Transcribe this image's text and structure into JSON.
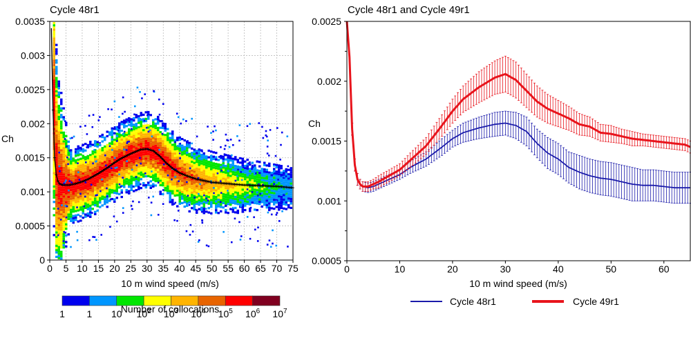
{
  "chart_data": [
    {
      "type": "heatmap",
      "title": "Cycle 48r1",
      "xlabel": "10 m wind speed (m/s)",
      "ylabel": "Ch",
      "xlim": [
        0,
        75
      ],
      "ylim": [
        0,
        0.0035
      ],
      "xticks": [
        "0",
        "5",
        "10",
        "15",
        "20",
        "25",
        "30",
        "35",
        "40",
        "45",
        "50",
        "55",
        "60",
        "65",
        "70",
        "75"
      ],
      "yticks": [
        "0",
        "0.0005",
        "0.001",
        "0.0015",
        "0.002",
        "0.0025",
        "0.003",
        "0.0035"
      ],
      "grid": true,
      "mean_curve": {
        "x": [
          0.5,
          1,
          1.5,
          2,
          2.5,
          3,
          4,
          5,
          6,
          8,
          10,
          12,
          15,
          18,
          20,
          22,
          25,
          28,
          30,
          32,
          34,
          36,
          38,
          40,
          42,
          45,
          48,
          50,
          55,
          60,
          65,
          70,
          75
        ],
        "y": [
          0.0034,
          0.0022,
          0.0015,
          0.00125,
          0.00116,
          0.00112,
          0.0011,
          0.0011,
          0.0011,
          0.00112,
          0.00115,
          0.00119,
          0.00127,
          0.00136,
          0.00143,
          0.00149,
          0.00156,
          0.00162,
          0.00163,
          0.0016,
          0.00152,
          0.00142,
          0.00134,
          0.00128,
          0.00124,
          0.00119,
          0.00116,
          0.00114,
          0.00112,
          0.0011,
          0.00109,
          0.00108,
          0.00106
        ]
      },
      "colorbar": {
        "label": "Number of collocations",
        "tick_labels": [
          {
            "base": "1",
            "exp": ""
          },
          {
            "base": "1",
            "exp": ""
          },
          {
            "base": "10",
            "exp": ""
          },
          {
            "base": "10",
            "exp": "2"
          },
          {
            "base": "10",
            "exp": "3"
          },
          {
            "base": "10",
            "exp": "4"
          },
          {
            "base": "10",
            "exp": "5"
          },
          {
            "base": "10",
            "exp": "6"
          },
          {
            "base": "10",
            "exp": "7"
          }
        ],
        "colors": [
          "#0000ee",
          "#0096ff",
          "#00e600",
          "#ffff00",
          "#ffb400",
          "#e86400",
          "#ff0000",
          "#800020"
        ]
      }
    },
    {
      "type": "line",
      "title": "Cycle 48r1 and Cycle 49r1",
      "xlabel": "10 m wind speed (m/s)",
      "ylabel": "Ch",
      "xlim": [
        0,
        65
      ],
      "ylim": [
        0.0005,
        0.0025
      ],
      "xticks": [
        "0",
        "10",
        "20",
        "30",
        "40",
        "50",
        "60"
      ],
      "yticks": [
        "0.0005",
        "0.001",
        "0.0015",
        "0.002",
        "0.0025"
      ],
      "legend": "bottom",
      "series": [
        {
          "name": "Cycle 48r1",
          "color": "#1a1aaa",
          "x": [
            0,
            0.5,
            1,
            1.5,
            2,
            2.5,
            3,
            4,
            5,
            6,
            8,
            10,
            12,
            15,
            18,
            20,
            22,
            25,
            28,
            30,
            32,
            34,
            36,
            38,
            40,
            42,
            44,
            46,
            48,
            50,
            52,
            54,
            56,
            58,
            60,
            62,
            65
          ],
          "y": [
            0.0025,
            0.0022,
            0.0016,
            0.0013,
            0.00118,
            0.00114,
            0.00112,
            0.00111,
            0.00112,
            0.00114,
            0.00118,
            0.00122,
            0.00128,
            0.00135,
            0.00145,
            0.00152,
            0.00157,
            0.00161,
            0.00164,
            0.00165,
            0.00163,
            0.00158,
            0.00148,
            0.0014,
            0.00135,
            0.00128,
            0.00124,
            0.00121,
            0.00119,
            0.00118,
            0.00116,
            0.00114,
            0.00113,
            0.00113,
            0.00112,
            0.00111,
            0.00111
          ],
          "err": [
            0,
            0,
            5e-05,
            5e-05,
            5e-05,
            4e-05,
            4e-05,
            4e-05,
            4e-05,
            4e-05,
            4e-05,
            4e-05,
            5e-05,
            6e-05,
            7e-05,
            7e-05,
            8e-05,
            9e-05,
            0.0001,
            0.0001,
            0.00011,
            0.00012,
            0.00012,
            0.00013,
            0.00013,
            0.00013,
            0.00014,
            0.00014,
            0.00014,
            0.00014,
            0.00014,
            0.00014,
            0.00013,
            0.00013,
            0.00013,
            0.00013,
            0.00013
          ]
        },
        {
          "name": "Cycle 49r1",
          "color": "#e8141c",
          "x": [
            0,
            0.5,
            1,
            1.5,
            2,
            2.5,
            3,
            4,
            5,
            6,
            8,
            10,
            12,
            15,
            18,
            20,
            22,
            25,
            28,
            30,
            32,
            34,
            36,
            38,
            40,
            42,
            44,
            46,
            48,
            50,
            52,
            54,
            56,
            58,
            60,
            62,
            64,
            65
          ],
          "y": [
            0.0025,
            0.0022,
            0.0016,
            0.0013,
            0.00118,
            0.00114,
            0.00112,
            0.00112,
            0.00114,
            0.00116,
            0.00121,
            0.00126,
            0.00134,
            0.00146,
            0.00163,
            0.00175,
            0.00185,
            0.00195,
            0.00203,
            0.00206,
            0.00201,
            0.00192,
            0.00183,
            0.00177,
            0.00173,
            0.00169,
            0.00164,
            0.00162,
            0.00157,
            0.00156,
            0.00154,
            0.00152,
            0.00151,
            0.0015,
            0.00149,
            0.00148,
            0.00147,
            0.00145
          ],
          "err": [
            0,
            0,
            5e-05,
            5e-05,
            5e-05,
            4e-05,
            4e-05,
            4e-05,
            4e-05,
            5e-05,
            5e-05,
            5e-05,
            6e-05,
            7e-05,
            9e-05,
            0.0001,
            0.00011,
            0.00013,
            0.00014,
            0.00015,
            0.00015,
            0.00014,
            0.00013,
            0.00012,
            0.00011,
            0.0001,
            9e-05,
            8e-05,
            7e-05,
            7e-05,
            6e-05,
            6e-05,
            5e-05,
            5e-05,
            5e-05,
            5e-05,
            5e-05,
            5e-05
          ]
        }
      ]
    }
  ]
}
